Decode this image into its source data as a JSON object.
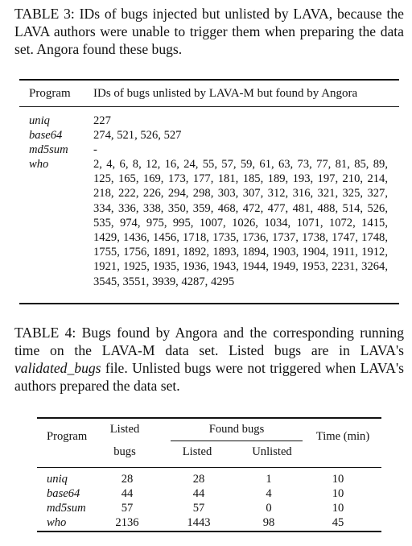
{
  "table3": {
    "caption": "TABLE 3: IDs of bugs injected but unlisted by LAVA, because the LAVA authors were unable to trigger them when preparing the data set. Angora found these bugs.",
    "headers": {
      "program": "Program",
      "ids": "IDs of bugs unlisted by LAVA-M but found by Angora"
    },
    "rows": [
      {
        "program": "uniq",
        "ids": "227"
      },
      {
        "program": "base64",
        "ids": "274, 521, 526, 527"
      },
      {
        "program": "md5sum",
        "ids": "-"
      },
      {
        "program": "who",
        "ids": "2, 4, 6, 8, 12, 16, 24, 55, 57, 59, 61, 63, 73, 77, 81, 85, 89, 125, 165, 169, 173, 177, 181, 185, 189, 193, 197, 210, 214, 218, 222, 226, 294, 298, 303, 307, 312, 316, 321, 325, 327, 334, 336, 338, 350, 359, 468, 472, 477, 481, 488, 514, 526, 535, 974, 975, 995, 1007, 1026, 1034, 1071, 1072, 1415, 1429, 1436, 1456, 1718, 1735, 1736, 1737, 1738, 1747, 1748, 1755, 1756, 1891, 1892, 1893, 1894, 1903, 1904, 1911, 1912, 1921, 1925, 1935, 1936, 1943, 1944, 1949, 1953, 2231, 3264, 3545, 3551, 3939, 4287, 4295"
      }
    ]
  },
  "table4": {
    "caption": {
      "before": "TABLE 4: Bugs found by Angora and the corresponding running time on the LAVA-M data set. Listed bugs are in LAVA's ",
      "italic": "validated_bugs",
      "after": " file. Unlisted bugs were not triggered when LAVA's authors prepared the data set."
    },
    "headers": {
      "program": "Program",
      "listed_line1": "Listed",
      "listed_line2": "bugs",
      "found_bugs": "Found bugs",
      "found_listed": "Listed",
      "found_unlisted": "Unlisted",
      "time": "Time (min)"
    },
    "rows": [
      {
        "program": "uniq",
        "listed_bugs": "28",
        "found_listed": "28",
        "found_unlisted": "1",
        "time": "10"
      },
      {
        "program": "base64",
        "listed_bugs": "44",
        "found_listed": "44",
        "found_unlisted": "4",
        "time": "10"
      },
      {
        "program": "md5sum",
        "listed_bugs": "57",
        "found_listed": "57",
        "found_unlisted": "0",
        "time": "10"
      },
      {
        "program": "who",
        "listed_bugs": "2136",
        "found_listed": "1443",
        "found_unlisted": "98",
        "time": "45"
      }
    ]
  }
}
